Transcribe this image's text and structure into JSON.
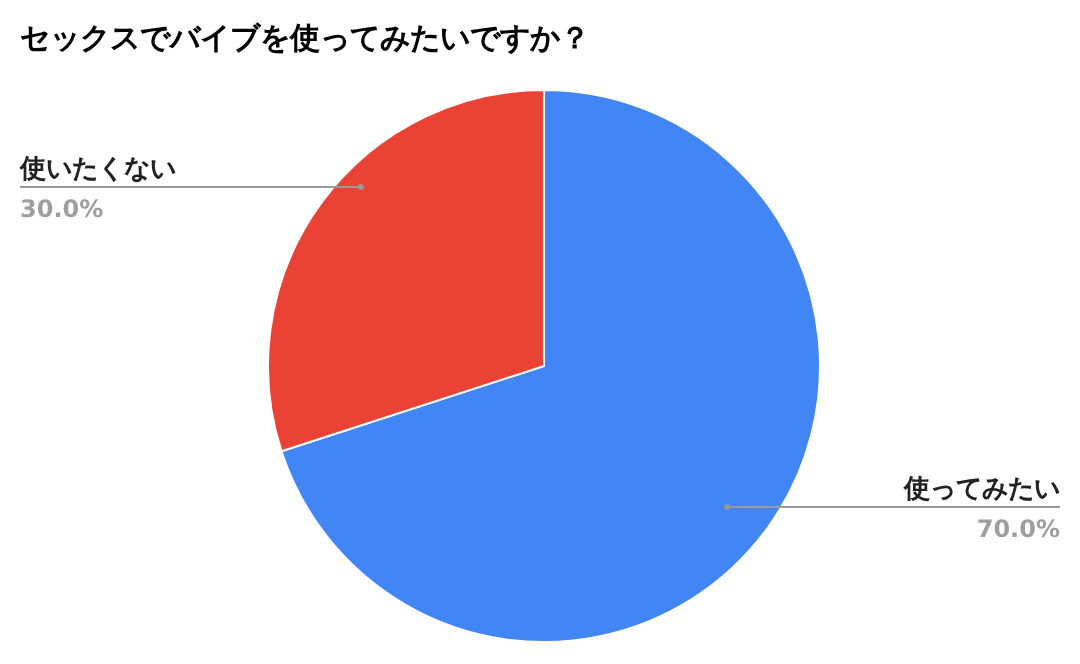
{
  "chart_data": {
    "type": "pie",
    "title": "セックスでバイブを使ってみたいですか？",
    "categories": [
      "使ってみたい",
      "使いたくない"
    ],
    "values": [
      70,
      30
    ],
    "colors": [
      "#4285f4",
      "#ea4335"
    ],
    "value_labels": [
      "70.0%",
      "30.0%"
    ]
  }
}
